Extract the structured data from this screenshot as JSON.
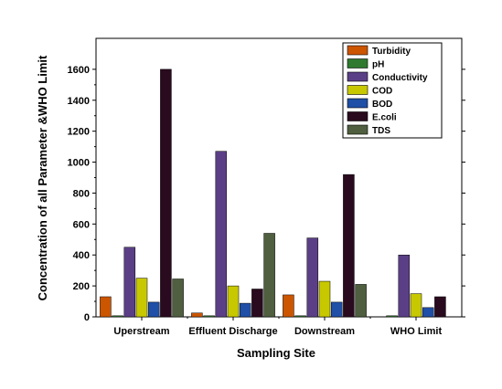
{
  "chart_data": {
    "type": "bar",
    "categories": [
      "Uperstream",
      "Effluent Discharge",
      "Downstream",
      "WHO Limit"
    ],
    "xlabel": "Sampling Site",
    "ylabel": "Concentration of all Parameter &WHO Limit",
    "ylim": [
      0,
      1800
    ],
    "yticks": [
      0,
      200,
      400,
      600,
      800,
      1000,
      1200,
      1400,
      1600
    ],
    "grid": false,
    "legend_position": "top-right",
    "series": [
      {
        "name": "Turbidity",
        "color": "#cc5500",
        "values": [
          130,
          25,
          142,
          0
        ]
      },
      {
        "name": "pH",
        "color": "#2f7a2f",
        "values": [
          7,
          7,
          7,
          7
        ]
      },
      {
        "name": "Conductivity",
        "color": "#5b3f86",
        "values": [
          450,
          1070,
          510,
          400
        ]
      },
      {
        "name": "COD",
        "color": "#c8c800",
        "values": [
          250,
          200,
          230,
          150
        ]
      },
      {
        "name": "BOD",
        "color": "#1f4fa6",
        "values": [
          95,
          88,
          95,
          60
        ]
      },
      {
        "name": "E.coli",
        "color": "#2a0a1e",
        "values": [
          1600,
          180,
          920,
          130
        ]
      },
      {
        "name": "TDS",
        "color": "#4f5f3f",
        "values": [
          245,
          540,
          210,
          0
        ]
      }
    ]
  }
}
